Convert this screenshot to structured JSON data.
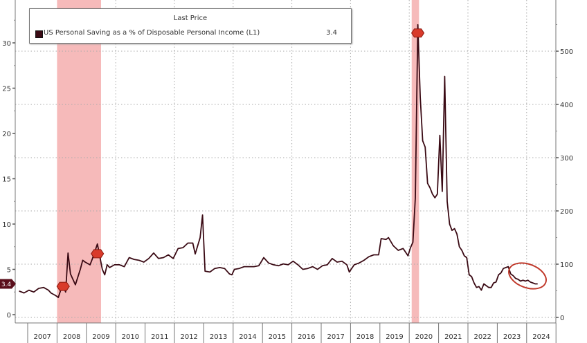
{
  "chart_data": {
    "type": "line",
    "legend": {
      "header": "Last Price",
      "placement": "top-left",
      "entries": [
        {
          "name": "US Personal Saving as a % of Disposable Personal Income  (L1)",
          "last_value": "3.4",
          "color": "#3a0a14"
        }
      ]
    },
    "left_axis": {
      "range": [
        -0.8,
        34.7
      ],
      "ticks": [
        0,
        5,
        10,
        15,
        20,
        25,
        30
      ],
      "tick_labels": [
        "0",
        "5",
        "10",
        "15",
        "20",
        "25",
        "30"
      ]
    },
    "right_axis": {
      "range": [
        -10,
        596
      ],
      "ticks": [
        0,
        100,
        200,
        300,
        400,
        500
      ],
      "tick_labels": [
        "0",
        "100",
        "200",
        "300",
        "400",
        "500"
      ]
    },
    "x_axis": {
      "categories": [
        "2007",
        "2008",
        "2009",
        "2010",
        "2011",
        "2012",
        "2013",
        "2014",
        "2015",
        "2016",
        "2017",
        "2018",
        "2019",
        "2020",
        "2021",
        "2022",
        "2023",
        "2024"
      ]
    },
    "grid": true,
    "last_value_tag": "3.4",
    "recessions": [
      [
        "2008-01",
        "2009-06"
      ],
      [
        "2020-02",
        "2020-04"
      ]
    ],
    "colors": {
      "line": "#3a0a14",
      "recession": "#f4a9a9",
      "marker": "#d93a2b",
      "circle": "#c0392b"
    },
    "series": [
      {
        "name": "US Personal Saving as a % of Disposable Personal Income  (L1)",
        "points": [
          [
            "2006-09",
            2.6
          ],
          [
            "2006-11",
            2.4
          ],
          [
            "2007-01",
            2.7
          ],
          [
            "2007-03",
            2.5
          ],
          [
            "2007-05",
            2.9
          ],
          [
            "2007-07",
            3.0
          ],
          [
            "2007-09",
            2.7
          ],
          [
            "2007-10",
            2.4
          ],
          [
            "2007-12",
            2.1
          ],
          [
            "2008-01",
            1.9
          ],
          [
            "2008-02",
            2.7
          ],
          [
            "2008-03",
            3.2
          ],
          [
            "2008-04",
            2.5
          ],
          [
            "2008-05",
            6.8
          ],
          [
            "2008-06",
            4.5
          ],
          [
            "2008-08",
            3.3
          ],
          [
            "2008-10",
            5.0
          ],
          [
            "2008-11",
            6.0
          ],
          [
            "2008-12",
            5.8
          ],
          [
            "2009-02",
            5.5
          ],
          [
            "2009-03",
            6.2
          ],
          [
            "2009-05",
            7.8
          ],
          [
            "2009-07",
            5.0
          ],
          [
            "2009-08",
            4.4
          ],
          [
            "2009-09",
            5.5
          ],
          [
            "2009-10",
            5.2
          ],
          [
            "2009-12",
            5.5
          ],
          [
            "2010-02",
            5.5
          ],
          [
            "2010-04",
            5.3
          ],
          [
            "2010-06",
            6.3
          ],
          [
            "2010-08",
            6.1
          ],
          [
            "2010-10",
            6.0
          ],
          [
            "2010-12",
            5.8
          ],
          [
            "2011-02",
            6.2
          ],
          [
            "2011-04",
            6.8
          ],
          [
            "2011-06",
            6.2
          ],
          [
            "2011-08",
            6.3
          ],
          [
            "2011-10",
            6.6
          ],
          [
            "2011-12",
            6.2
          ],
          [
            "2012-02",
            7.3
          ],
          [
            "2012-04",
            7.4
          ],
          [
            "2012-06",
            7.9
          ],
          [
            "2012-08",
            7.9
          ],
          [
            "2012-09",
            6.7
          ],
          [
            "2012-11",
            8.5
          ],
          [
            "2012-12",
            11.0
          ],
          [
            "2013-01",
            4.8
          ],
          [
            "2013-03",
            4.7
          ],
          [
            "2013-05",
            5.1
          ],
          [
            "2013-07",
            5.2
          ],
          [
            "2013-09",
            5.1
          ],
          [
            "2013-11",
            4.5
          ],
          [
            "2013-12",
            4.4
          ],
          [
            "2014-01",
            5.0
          ],
          [
            "2014-03",
            5.1
          ],
          [
            "2014-05",
            5.3
          ],
          [
            "2014-07",
            5.3
          ],
          [
            "2014-09",
            5.3
          ],
          [
            "2014-11",
            5.4
          ],
          [
            "2015-01",
            6.3
          ],
          [
            "2015-03",
            5.7
          ],
          [
            "2015-05",
            5.5
          ],
          [
            "2015-07",
            5.4
          ],
          [
            "2015-09",
            5.6
          ],
          [
            "2015-11",
            5.5
          ],
          [
            "2016-01",
            5.9
          ],
          [
            "2016-03",
            5.5
          ],
          [
            "2016-05",
            5.0
          ],
          [
            "2016-07",
            5.1
          ],
          [
            "2016-09",
            5.3
          ],
          [
            "2016-11",
            5.0
          ],
          [
            "2017-01",
            5.4
          ],
          [
            "2017-03",
            5.5
          ],
          [
            "2017-05",
            6.2
          ],
          [
            "2017-07",
            5.8
          ],
          [
            "2017-09",
            5.9
          ],
          [
            "2017-11",
            5.5
          ],
          [
            "2017-12",
            4.7
          ],
          [
            "2018-02",
            5.5
          ],
          [
            "2018-04",
            5.7
          ],
          [
            "2018-06",
            6.0
          ],
          [
            "2018-08",
            6.4
          ],
          [
            "2018-10",
            6.6
          ],
          [
            "2018-12",
            6.6
          ],
          [
            "2019-01",
            8.4
          ],
          [
            "2019-03",
            8.3
          ],
          [
            "2019-04",
            8.5
          ],
          [
            "2019-06",
            7.6
          ],
          [
            "2019-08",
            7.1
          ],
          [
            "2019-10",
            7.3
          ],
          [
            "2019-12",
            6.5
          ],
          [
            "2020-01",
            7.4
          ],
          [
            "2020-02",
            8.0
          ],
          [
            "2020-03",
            12.9
          ],
          [
            "2020-04",
            32.0
          ],
          [
            "2020-05",
            24.0
          ],
          [
            "2020-06",
            19.2
          ],
          [
            "2020-07",
            18.5
          ],
          [
            "2020-08",
            14.5
          ],
          [
            "2020-09",
            14.0
          ],
          [
            "2020-10",
            13.3
          ],
          [
            "2020-11",
            12.9
          ],
          [
            "2020-12",
            13.3
          ],
          [
            "2021-01",
            19.8
          ],
          [
            "2021-02",
            13.6
          ],
          [
            "2021-03",
            26.3
          ],
          [
            "2021-04",
            12.5
          ],
          [
            "2021-05",
            10.0
          ],
          [
            "2021-06",
            9.3
          ],
          [
            "2021-07",
            9.5
          ],
          [
            "2021-08",
            8.9
          ],
          [
            "2021-09",
            7.5
          ],
          [
            "2021-10",
            7.1
          ],
          [
            "2021-11",
            6.5
          ],
          [
            "2021-12",
            6.3
          ],
          [
            "2022-01",
            4.4
          ],
          [
            "2022-02",
            4.2
          ],
          [
            "2022-03",
            3.5
          ],
          [
            "2022-04",
            3.0
          ],
          [
            "2022-05",
            3.1
          ],
          [
            "2022-06",
            2.7
          ],
          [
            "2022-07",
            3.4
          ],
          [
            "2022-08",
            3.2
          ],
          [
            "2022-09",
            3.0
          ],
          [
            "2022-10",
            3.0
          ],
          [
            "2022-11",
            3.5
          ],
          [
            "2022-12",
            3.6
          ],
          [
            "2023-01",
            4.4
          ],
          [
            "2023-02",
            4.6
          ],
          [
            "2023-03",
            5.1
          ],
          [
            "2023-04",
            5.2
          ],
          [
            "2023-05",
            5.3
          ],
          [
            "2023-06",
            4.5
          ],
          [
            "2023-07",
            4.3
          ],
          [
            "2023-08",
            4.0
          ],
          [
            "2023-09",
            3.9
          ],
          [
            "2023-10",
            3.7
          ],
          [
            "2023-11",
            3.8
          ],
          [
            "2023-12",
            3.7
          ],
          [
            "2024-01",
            3.8
          ],
          [
            "2024-02",
            3.6
          ],
          [
            "2024-03",
            3.5
          ],
          [
            "2024-04",
            3.4
          ],
          [
            "2024-05",
            3.4
          ]
        ]
      }
    ]
  }
}
